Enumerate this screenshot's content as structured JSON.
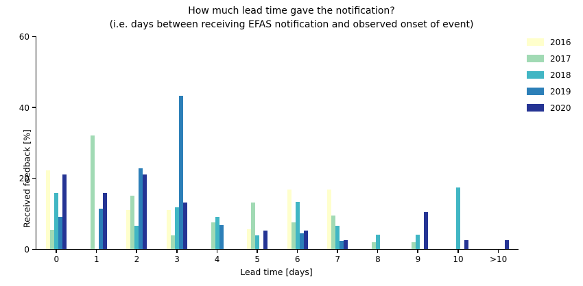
{
  "title": {
    "line1": "How much lead time gave the notification?",
    "line2": "(i.e. days between receiving EFAS notification and observed onset of event)"
  },
  "chart_data": {
    "type": "bar",
    "title": "How much lead time gave the notification? (i.e. days between receiving EFAS notification and observed onset of event)",
    "xlabel": "Lead time [days]",
    "ylabel": "Received feedback [%]",
    "ylim": [
      0,
      60
    ],
    "yticks": [
      0,
      20,
      40,
      60
    ],
    "categories": [
      "0",
      "1",
      "2",
      "3",
      "4",
      "5",
      "6",
      "7",
      "8",
      "9",
      "10",
      ">10"
    ],
    "grid": false,
    "legend_position": "outside upper right, no frame",
    "series": [
      {
        "name": "2016",
        "color": "#ffffcc",
        "values": [
          22.2,
          0,
          11.1,
          11.1,
          0,
          5.6,
          16.7,
          16.7,
          0,
          0,
          0,
          0
        ]
      },
      {
        "name": "2017",
        "color": "#a1dab4",
        "values": [
          5.5,
          32.1,
          15.1,
          3.8,
          7.5,
          13.2,
          7.5,
          9.4,
          2,
          2,
          0,
          0
        ]
      },
      {
        "name": "2018",
        "color": "#41b6c4",
        "values": [
          15.9,
          0,
          6.6,
          11.8,
          9.1,
          3.9,
          13.3,
          6.6,
          4,
          4,
          17.4,
          0
        ]
      },
      {
        "name": "2019",
        "color": "#2c7fb8",
        "values": [
          9.1,
          11.4,
          22.7,
          43.2,
          6.8,
          0,
          4.5,
          2.3,
          0,
          0,
          0,
          0
        ]
      },
      {
        "name": "2020",
        "color": "#253494",
        "values": [
          21.1,
          15.8,
          21.1,
          13.2,
          0,
          5.3,
          5.3,
          2.6,
          0,
          10.5,
          2.6,
          2.6
        ]
      }
    ]
  },
  "colors": {
    "spine": "#000000",
    "background": "#ffffff",
    "text": "#000000"
  }
}
